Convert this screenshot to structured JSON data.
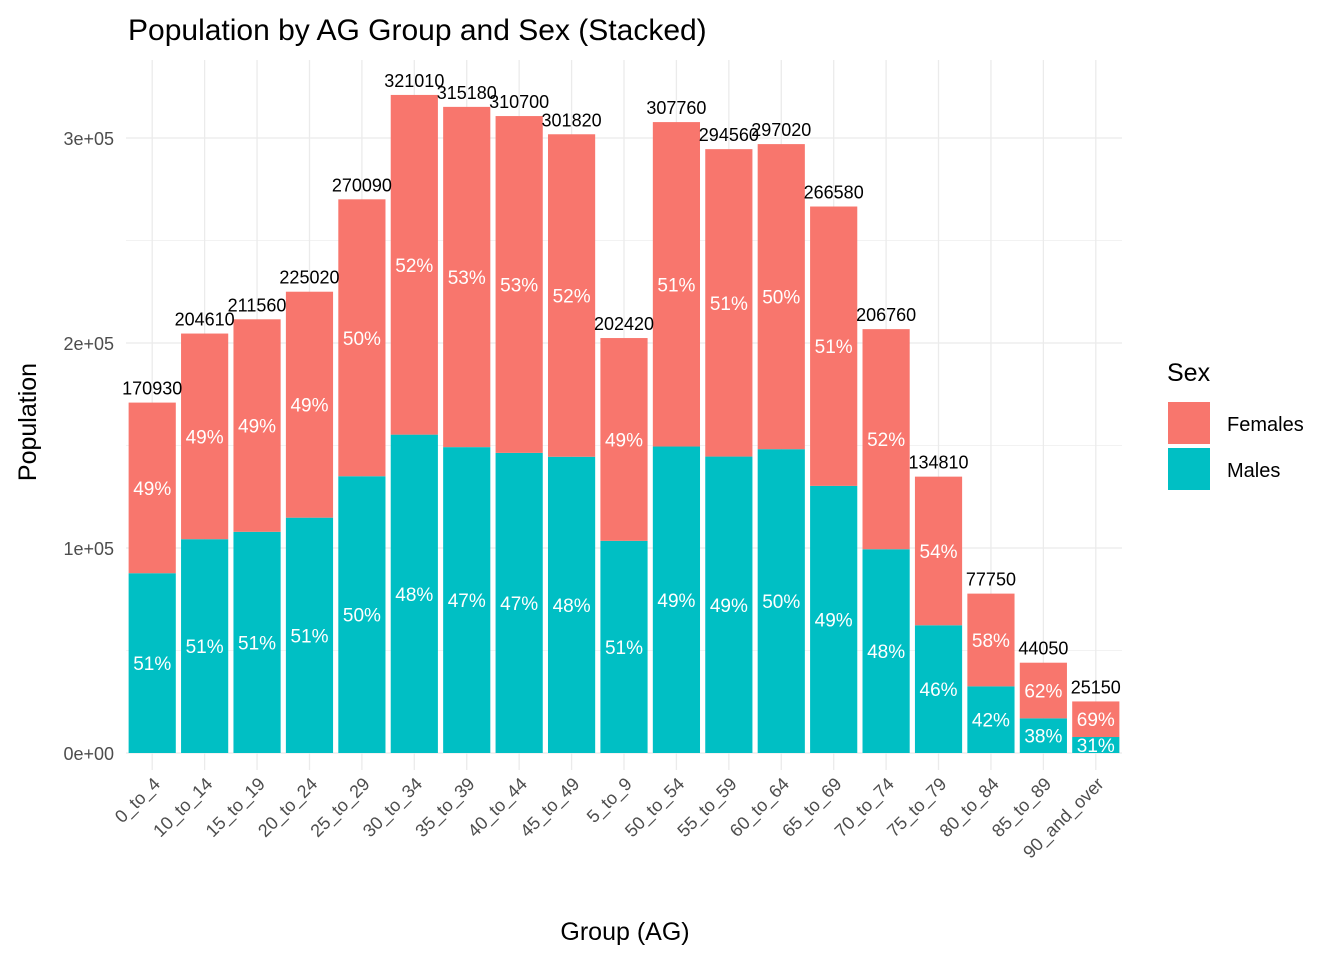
{
  "chart_data": {
    "type": "bar",
    "stacked": true,
    "title": "Population by AG Group and Sex (Stacked)",
    "xlabel": "Group (AG)",
    "ylabel": "Population",
    "ylim": [
      0,
      330000
    ],
    "yticks": [
      0,
      100000,
      200000,
      300000
    ],
    "ytick_labels": [
      "0e+00",
      "1e+05",
      "2e+05",
      "3e+05"
    ],
    "categories": [
      "0_to_4",
      "10_to_14",
      "15_to_19",
      "20_to_24",
      "25_to_29",
      "30_to_34",
      "35_to_39",
      "40_to_44",
      "45_to_49",
      "5_to_9",
      "50_to_54",
      "55_to_59",
      "60_to_64",
      "65_to_69",
      "70_to_74",
      "75_to_79",
      "80_to_84",
      "85_to_89",
      "90_and_over"
    ],
    "totals": [
      170930,
      204610,
      211560,
      225020,
      270090,
      321010,
      315180,
      310700,
      301820,
      202420,
      307760,
      294560,
      297020,
      266580,
      206760,
      134810,
      77750,
      44050,
      25150
    ],
    "total_labels": [
      "170930",
      "204610",
      "211560",
      "225020",
      "270090",
      "321010",
      "315180",
      "310700",
      "301820",
      "202420",
      "307760",
      "294560",
      "297020",
      "266580",
      "206760",
      "134810",
      "77750",
      "44050",
      "25150"
    ],
    "series": [
      {
        "name": "Males",
        "color": "#00BFC4",
        "values": [
          87700,
          104300,
          107900,
          114800,
          135000,
          155300,
          149200,
          146400,
          144500,
          103500,
          149500,
          144600,
          148200,
          130300,
          99400,
          62300,
          32500,
          16900,
          7800
        ],
        "pct_labels": [
          "51%",
          "51%",
          "51%",
          "51%",
          "50%",
          "48%",
          "47%",
          "47%",
          "48%",
          "51%",
          "49%",
          "49%",
          "50%",
          "49%",
          "48%",
          "46%",
          "42%",
          "38%",
          "31%"
        ]
      },
      {
        "name": "Females",
        "color": "#F8766D",
        "values": [
          83230,
          100310,
          103660,
          110220,
          135090,
          165710,
          165980,
          164300,
          157320,
          98920,
          158260,
          149960,
          148820,
          136280,
          107360,
          72510,
          45250,
          27150,
          17350
        ],
        "pct_labels": [
          "49%",
          "49%",
          "49%",
          "49%",
          "50%",
          "52%",
          "53%",
          "53%",
          "52%",
          "49%",
          "51%",
          "51%",
          "50%",
          "51%",
          "52%",
          "54%",
          "58%",
          "62%",
          "69%"
        ]
      }
    ],
    "legend": {
      "title": "Sex",
      "position": "right",
      "entries": [
        {
          "name": "Females",
          "color": "#F8766D"
        },
        {
          "name": "Males",
          "color": "#00BFC4"
        }
      ]
    },
    "grid": true
  }
}
